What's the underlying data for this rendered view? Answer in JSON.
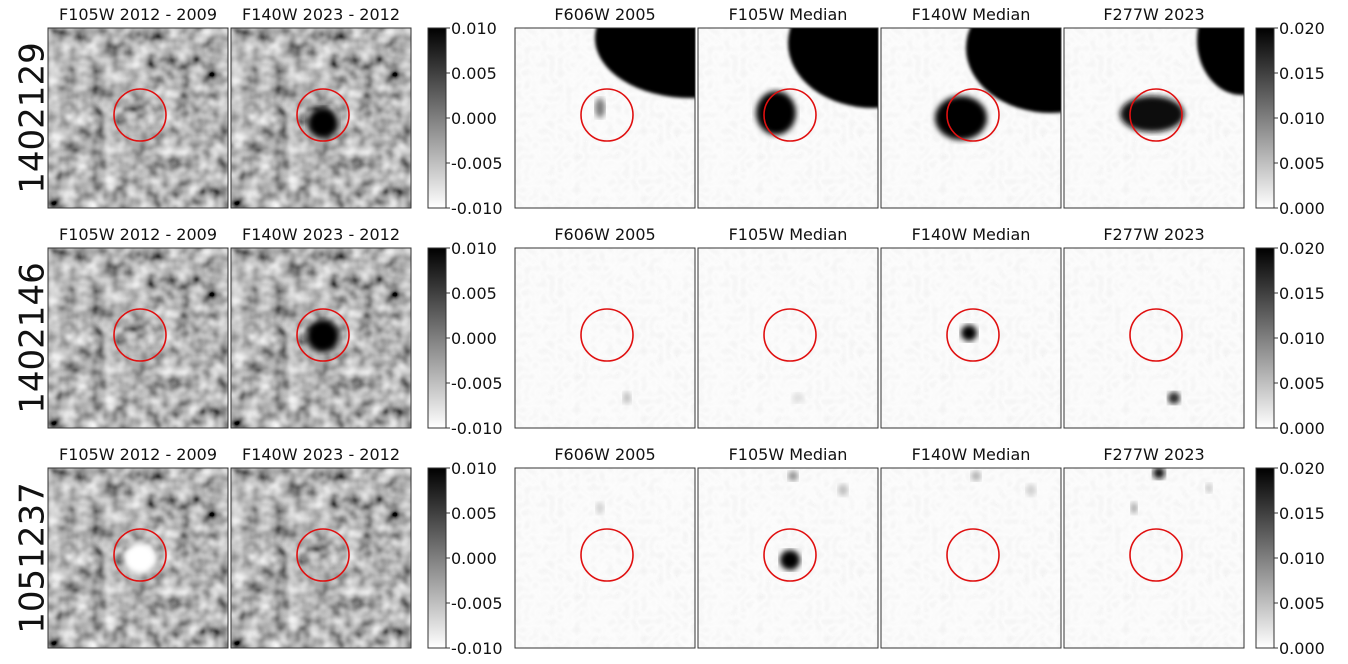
{
  "rows": [
    {
      "id": "1402129",
      "titles": [
        "F105W 2012 - 2009",
        "F140W 2023 - 2012",
        "F606W 2005",
        "F105W Median",
        "F140W Median",
        "F277W 2023"
      ],
      "colorbar_1": [
        "0.010",
        "0.005",
        "0.000",
        "-0.005",
        "-0.010"
      ],
      "colorbar_2": [
        "0.020",
        "0.015",
        "0.010",
        "0.005",
        "0.000"
      ]
    },
    {
      "id": "1402146",
      "titles": [
        "F105W 2012 - 2009",
        "F140W 2023 - 2012",
        "F606W 2005",
        "F105W Median",
        "F140W Median",
        "F277W 2023"
      ],
      "colorbar_1": [
        "0.010",
        "0.005",
        "0.000",
        "-0.005",
        "-0.010"
      ],
      "colorbar_2": [
        "0.020",
        "0.015",
        "0.010",
        "0.005",
        "0.000"
      ]
    },
    {
      "id": "1051237",
      "titles": [
        "F105W 2012 - 2009",
        "F140W 2023 - 2012",
        "F606W 2005",
        "F105W Median",
        "F140W Median",
        "F277W 2023"
      ],
      "colorbar_1": [
        "0.010",
        "0.005",
        "0.000",
        "-0.005",
        "-0.010"
      ],
      "colorbar_2": [
        "0.020",
        "0.015",
        "0.010",
        "0.005",
        "0.000"
      ]
    }
  ]
}
